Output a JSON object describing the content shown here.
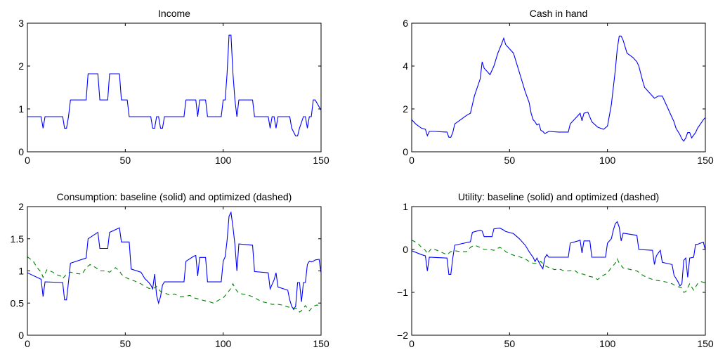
{
  "colors": {
    "baseline": "#0000ff",
    "optimized": "#008000",
    "axes": "#000000",
    "background": "#ffffff"
  },
  "chart_data": [
    {
      "type": "line",
      "title": "Income",
      "xlim": [
        0,
        150
      ],
      "ylim": [
        0,
        3
      ],
      "xticks": [
        0,
        50,
        100,
        150
      ],
      "yticks": [
        0,
        1,
        2,
        3
      ],
      "grid": false,
      "series": [
        {
          "style": "solid",
          "color": "#0000ff",
          "x": [
            0,
            7,
            8,
            9,
            18,
            19,
            20,
            21,
            22,
            30,
            31,
            36,
            37,
            41,
            42,
            47,
            48,
            51,
            52,
            63,
            64,
            65,
            66,
            67,
            68,
            69,
            70,
            80,
            81,
            86,
            87,
            88,
            91,
            92,
            99,
            100,
            101,
            102,
            103,
            104,
            105,
            106,
            107,
            108,
            115,
            116,
            123,
            124,
            125,
            126,
            127,
            128,
            134,
            135,
            137,
            138,
            139,
            141,
            142,
            143,
            144,
            145,
            146,
            147,
            150
          ],
          "y": [
            0.82,
            0.82,
            0.55,
            0.82,
            0.82,
            0.55,
            0.55,
            0.82,
            1.21,
            1.21,
            1.82,
            1.82,
            1.21,
            1.21,
            1.82,
            1.82,
            1.21,
            1.21,
            0.82,
            0.82,
            0.55,
            0.55,
            0.82,
            0.82,
            0.55,
            0.55,
            0.82,
            0.82,
            1.21,
            1.21,
            0.82,
            1.21,
            1.21,
            0.82,
            0.82,
            1.21,
            1.21,
            1.82,
            2.72,
            2.72,
            1.82,
            1.21,
            0.82,
            1.21,
            1.21,
            0.82,
            0.82,
            0.55,
            0.82,
            0.82,
            0.55,
            0.82,
            0.82,
            0.55,
            0.37,
            0.37,
            0.55,
            0.82,
            0.82,
            0.55,
            0.82,
            0.82,
            1.21,
            1.21,
            0.97
          ]
        }
      ]
    },
    {
      "type": "line",
      "title": "Cash in hand",
      "xlim": [
        0,
        150
      ],
      "ylim": [
        0,
        6
      ],
      "xticks": [
        0,
        50,
        100,
        150
      ],
      "yticks": [
        0,
        2,
        4,
        6
      ],
      "grid": false,
      "series": [
        {
          "style": "solid",
          "color": "#0000ff",
          "x": [
            0,
            2,
            5,
            7,
            8,
            9,
            12,
            15,
            18,
            19,
            20,
            21,
            22,
            25,
            28,
            30,
            32,
            35,
            36,
            37,
            40,
            42,
            44,
            46,
            47,
            48,
            52,
            55,
            58,
            60,
            61,
            62,
            63,
            64,
            65,
            66,
            67,
            68,
            70,
            75,
            80,
            81,
            84,
            86,
            87,
            88,
            90,
            92,
            95,
            98,
            100,
            102,
            104,
            105,
            106,
            107,
            108,
            110,
            113,
            115,
            116,
            118,
            119,
            121,
            124,
            126,
            128,
            130,
            132,
            134,
            135,
            137,
            138,
            139,
            140,
            141,
            142,
            143,
            145,
            146,
            149,
            150
          ],
          "y": [
            1.5,
            1.3,
            1.1,
            1.05,
            0.75,
            0.95,
            0.95,
            0.93,
            0.92,
            0.68,
            0.68,
            0.9,
            1.3,
            1.5,
            1.7,
            1.8,
            2.6,
            3.4,
            4.2,
            3.9,
            3.6,
            4.0,
            4.6,
            5.05,
            5.3,
            5.0,
            4.6,
            3.7,
            2.8,
            2.3,
            1.8,
            1.5,
            1.4,
            1.25,
            1.3,
            1.0,
            0.95,
            0.85,
            0.95,
            0.92,
            0.92,
            1.3,
            1.6,
            1.8,
            1.45,
            1.8,
            1.85,
            1.4,
            1.15,
            1.05,
            1.2,
            2.2,
            3.8,
            4.8,
            5.4,
            5.4,
            5.2,
            4.6,
            4.4,
            4.2,
            4.0,
            3.3,
            3.0,
            2.8,
            2.5,
            2.6,
            2.6,
            2.2,
            1.8,
            1.4,
            1.1,
            0.8,
            0.6,
            0.5,
            0.65,
            0.9,
            0.9,
            0.65,
            0.9,
            1.1,
            1.5,
            1.6
          ]
        }
      ]
    },
    {
      "type": "line",
      "title": "Consumption: baseline (solid) and optimized (dashed)",
      "xlim": [
        0,
        150
      ],
      "ylim": [
        0,
        2
      ],
      "xticks": [
        0,
        50,
        100,
        150
      ],
      "yticks": [
        0,
        0.5,
        1,
        1.5,
        2
      ],
      "grid": false,
      "series": [
        {
          "style": "solid",
          "color": "#0000ff",
          "x": [
            0,
            7,
            8,
            9,
            18,
            19,
            20,
            21,
            22,
            30,
            31,
            36,
            37,
            41,
            42,
            47,
            48,
            52,
            53,
            58,
            59,
            60,
            61,
            62,
            63,
            64,
            65,
            66,
            67,
            68,
            69,
            70,
            80,
            81,
            85,
            86,
            87,
            88,
            91,
            92,
            99,
            100,
            101,
            102,
            103,
            104,
            105,
            106,
            107,
            108,
            115,
            116,
            123,
            124,
            126,
            127,
            128,
            133,
            134,
            135,
            136,
            137,
            138,
            139,
            140,
            141,
            142,
            143,
            144,
            145,
            146,
            147,
            149,
            150
          ],
          "y": [
            0.97,
            0.87,
            0.6,
            0.83,
            0.82,
            0.55,
            0.55,
            0.83,
            1.12,
            1.2,
            1.5,
            1.6,
            1.35,
            1.35,
            1.6,
            1.67,
            1.45,
            1.45,
            1.03,
            0.98,
            0.93,
            0.88,
            0.85,
            0.82,
            0.78,
            0.72,
            0.95,
            0.62,
            0.5,
            0.6,
            0.78,
            0.83,
            0.83,
            1.15,
            1.23,
            1.24,
            0.92,
            1.21,
            1.21,
            0.83,
            0.83,
            1.15,
            1.22,
            1.47,
            1.85,
            1.91,
            1.68,
            1.41,
            1.0,
            1.42,
            1.4,
            0.99,
            0.97,
            0.72,
            0.86,
            0.97,
            0.75,
            0.7,
            0.55,
            0.45,
            0.4,
            0.45,
            0.82,
            0.82,
            0.52,
            0.82,
            0.82,
            1.1,
            1.15,
            1.14,
            1.15,
            1.17,
            1.18,
            0.97
          ]
        },
        {
          "style": "dashed",
          "color": "#008000",
          "x": [
            0,
            3,
            5,
            7,
            8,
            10,
            13,
            15,
            17,
            18,
            20,
            22,
            25,
            28,
            30,
            32,
            35,
            37,
            40,
            42,
            45,
            47,
            48,
            50,
            53,
            55,
            58,
            60,
            62,
            64,
            66,
            68,
            70,
            73,
            75,
            78,
            80,
            83,
            85,
            88,
            90,
            93,
            95,
            98,
            100,
            102,
            104,
            105,
            106,
            108,
            110,
            113,
            115,
            118,
            120,
            123,
            125,
            128,
            130,
            133,
            135,
            138,
            139,
            140,
            142,
            144,
            146,
            148,
            150
          ],
          "y": [
            1.22,
            1.15,
            1.05,
            0.98,
            0.9,
            1.02,
            0.98,
            0.94,
            0.92,
            0.88,
            0.95,
            0.98,
            0.96,
            0.95,
            1.05,
            1.1,
            1.05,
            1.0,
            1.0,
            0.98,
            1.05,
            1.0,
            0.95,
            0.9,
            0.86,
            0.84,
            0.8,
            0.76,
            0.73,
            0.72,
            0.76,
            0.68,
            0.66,
            0.62,
            0.64,
            0.6,
            0.6,
            0.62,
            0.58,
            0.56,
            0.54,
            0.52,
            0.5,
            0.55,
            0.58,
            0.65,
            0.73,
            0.8,
            0.73,
            0.65,
            0.64,
            0.62,
            0.6,
            0.55,
            0.52,
            0.5,
            0.48,
            0.48,
            0.47,
            0.44,
            0.43,
            0.41,
            0.36,
            0.38,
            0.46,
            0.38,
            0.45,
            0.47,
            0.45
          ]
        }
      ]
    },
    {
      "type": "line",
      "title": "Utility: baseline (solid) and optimized (dashed)",
      "xlim": [
        0,
        150
      ],
      "ylim": [
        -2,
        1
      ],
      "xticks": [
        0,
        50,
        100,
        150
      ],
      "yticks": [
        -2,
        -1,
        0,
        1
      ],
      "grid": false,
      "series": [
        {
          "style": "solid",
          "color": "#0000ff",
          "x": [
            0,
            5,
            7,
            8,
            9,
            18,
            19,
            20,
            21,
            22,
            30,
            31,
            35,
            36,
            37,
            41,
            42,
            45,
            47,
            48,
            52,
            55,
            58,
            60,
            61,
            62,
            63,
            64,
            65,
            66,
            67,
            68,
            69,
            70,
            80,
            81,
            85,
            86,
            87,
            88,
            91,
            92,
            99,
            100,
            102,
            103,
            104,
            105,
            106,
            107,
            108,
            115,
            116,
            123,
            124,
            125,
            126,
            127,
            128,
            133,
            134,
            136,
            137,
            138,
            139,
            140,
            141,
            142,
            144,
            145,
            146,
            147,
            149,
            150
          ],
          "y": [
            -0.03,
            -0.12,
            -0.15,
            -0.5,
            -0.18,
            -0.2,
            -0.58,
            -0.58,
            -0.2,
            0.1,
            0.18,
            0.4,
            0.45,
            0.43,
            0.3,
            0.3,
            0.48,
            0.5,
            0.45,
            0.42,
            0.37,
            0.25,
            0.1,
            -0.05,
            -0.12,
            -0.18,
            -0.28,
            -0.2,
            -0.3,
            -0.38,
            -0.45,
            -0.2,
            -0.12,
            -0.18,
            -0.18,
            0.15,
            0.2,
            0.22,
            -0.08,
            0.2,
            0.2,
            -0.18,
            -0.18,
            0.15,
            0.25,
            0.45,
            0.6,
            0.65,
            0.52,
            0.2,
            0.38,
            0.33,
            0.0,
            -0.02,
            -0.35,
            -0.15,
            -0.08,
            -0.02,
            -0.3,
            -0.35,
            -0.6,
            -0.75,
            -0.85,
            -0.8,
            -0.25,
            -0.2,
            -0.65,
            -0.2,
            -0.18,
            0.12,
            0.12,
            0.14,
            0.17,
            -0.02
          ]
        },
        {
          "style": "dashed",
          "color": "#008000",
          "x": [
            0,
            3,
            5,
            7,
            8,
            10,
            13,
            15,
            18,
            20,
            22,
            25,
            28,
            30,
            32,
            35,
            37,
            40,
            42,
            45,
            47,
            48,
            50,
            53,
            55,
            58,
            60,
            62,
            64,
            66,
            68,
            70,
            73,
            75,
            78,
            80,
            83,
            85,
            88,
            90,
            93,
            95,
            98,
            100,
            102,
            104,
            105,
            106,
            108,
            110,
            113,
            115,
            118,
            120,
            123,
            125,
            128,
            130,
            133,
            135,
            138,
            139,
            140,
            142,
            144,
            146,
            148,
            150
          ],
          "y": [
            0.22,
            0.15,
            0.05,
            -0.02,
            -0.1,
            0.02,
            -0.02,
            -0.06,
            -0.12,
            -0.05,
            -0.03,
            -0.05,
            -0.05,
            0.05,
            0.1,
            0.05,
            0.0,
            0.0,
            -0.02,
            0.05,
            0.0,
            -0.05,
            -0.1,
            -0.15,
            -0.17,
            -0.22,
            -0.28,
            -0.32,
            -0.33,
            -0.28,
            -0.38,
            -0.42,
            -0.47,
            -0.45,
            -0.5,
            -0.5,
            -0.48,
            -0.55,
            -0.58,
            -0.62,
            -0.65,
            -0.7,
            -0.6,
            -0.55,
            -0.42,
            -0.32,
            -0.22,
            -0.32,
            -0.43,
            -0.45,
            -0.48,
            -0.5,
            -0.6,
            -0.65,
            -0.7,
            -0.72,
            -0.74,
            -0.76,
            -0.8,
            -0.85,
            -0.9,
            -1.0,
            -0.98,
            -0.8,
            -0.95,
            -0.8,
            -0.75,
            -0.78
          ]
        }
      ]
    }
  ]
}
